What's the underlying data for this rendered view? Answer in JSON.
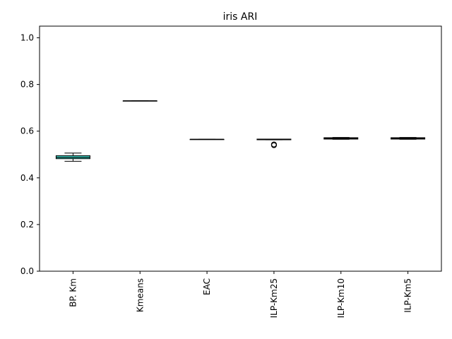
{
  "chart_data": {
    "type": "box",
    "title": "iris ARI",
    "xlabel": "",
    "ylabel": "",
    "ylim": [
      0,
      1.05
    ],
    "yticks": [
      0.0,
      0.2,
      0.4,
      0.6,
      0.8,
      1.0
    ],
    "ytick_labels": [
      "0.0",
      "0.2",
      "0.4",
      "0.6",
      "0.8",
      "1.0"
    ],
    "grid": false,
    "categories": [
      "BP. Km",
      "Kmeans",
      "EAC",
      "ILP-Km25",
      "ILP-Km10",
      "ILP-Km5"
    ],
    "boxes": [
      {
        "min": 0.471,
        "q1": 0.482,
        "median": 0.488,
        "q3": 0.495,
        "max": 0.506,
        "outliers": [],
        "color": "#40e0d0"
      },
      {
        "min": 0.73,
        "q1": 0.73,
        "median": 0.73,
        "q3": 0.73,
        "max": 0.73,
        "outliers": [],
        "color": "#ffffff"
      },
      {
        "min": 0.565,
        "q1": 0.565,
        "median": 0.565,
        "q3": 0.565,
        "max": 0.565,
        "outliers": [],
        "color": "#ffffff"
      },
      {
        "min": 0.563,
        "q1": 0.563,
        "median": 0.565,
        "q3": 0.566,
        "max": 0.566,
        "outliers": [
          0.54,
          0.543
        ],
        "color": "#ffffff"
      },
      {
        "min": 0.565,
        "q1": 0.566,
        "median": 0.569,
        "q3": 0.572,
        "max": 0.573,
        "outliers": [],
        "color": "#cd5c5c"
      },
      {
        "min": 0.565,
        "q1": 0.566,
        "median": 0.569,
        "q3": 0.572,
        "max": 0.573,
        "outliers": [],
        "color": "#cd5c5c"
      }
    ]
  }
}
